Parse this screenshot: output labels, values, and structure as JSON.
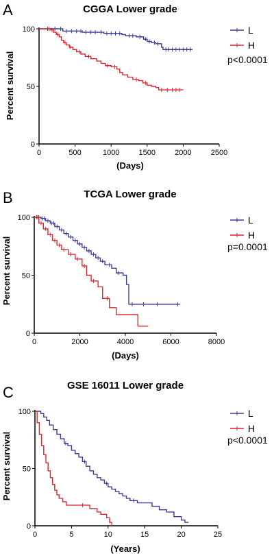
{
  "chart_data": [
    {
      "type": "line",
      "letter": "A",
      "title": "CGGA Lower grade",
      "xlabel": "(Days)",
      "ylabel": "Percent survival",
      "xlim": [
        0,
        2500
      ],
      "ylim": [
        0,
        100
      ],
      "xticks": [
        0,
        500,
        1000,
        1500,
        2000,
        2500
      ],
      "yticks": [
        0,
        50,
        100
      ],
      "pvalue": "p<0.0001",
      "series": [
        {
          "name": "L",
          "color": "#3b3b9a",
          "points": [
            [
              0,
              100
            ],
            [
              180,
              100
            ],
            [
              260,
              100
            ],
            [
              330,
              98
            ],
            [
              600,
              97
            ],
            [
              900,
              96
            ],
            [
              1150,
              95
            ],
            [
              1200,
              94
            ],
            [
              1350,
              93
            ],
            [
              1450,
              91
            ],
            [
              1500,
              89
            ],
            [
              1560,
              88
            ],
            [
              1620,
              87
            ],
            [
              1700,
              84
            ],
            [
              1720,
              82
            ],
            [
              2130,
              82
            ]
          ],
          "censors": [
            120,
            220,
            300,
            380,
            450,
            520,
            580,
            650,
            720,
            780,
            860,
            940,
            1000,
            1060,
            1120,
            1250,
            1300,
            1400,
            1480,
            1530,
            1600,
            1650,
            1760,
            1800,
            1850,
            1900,
            1950,
            2000,
            2050,
            2100
          ]
        },
        {
          "name": "H",
          "color": "#e0242c",
          "points": [
            [
              0,
              100
            ],
            [
              160,
              99
            ],
            [
              200,
              97
            ],
            [
              240,
              95
            ],
            [
              280,
              93
            ],
            [
              310,
              90
            ],
            [
              340,
              88
            ],
            [
              380,
              86
            ],
            [
              420,
              84
            ],
            [
              470,
              82
            ],
            [
              520,
              80
            ],
            [
              580,
              78
            ],
            [
              640,
              76
            ],
            [
              720,
              74
            ],
            [
              800,
              72
            ],
            [
              860,
              70
            ],
            [
              920,
              68
            ],
            [
              1000,
              67
            ],
            [
              1080,
              65
            ],
            [
              1120,
              62
            ],
            [
              1160,
              60
            ],
            [
              1230,
              58
            ],
            [
              1300,
              56
            ],
            [
              1380,
              55
            ],
            [
              1440,
              53
            ],
            [
              1500,
              51
            ],
            [
              1560,
              50
            ],
            [
              1620,
              49
            ],
            [
              1660,
              47
            ],
            [
              2000,
              47
            ]
          ],
          "censors": [
            140,
            180,
            260,
            360,
            430,
            560,
            690,
            950,
            1050,
            1350,
            1480,
            1700,
            1780,
            1850,
            1900,
            1950
          ]
        }
      ]
    },
    {
      "type": "line",
      "letter": "B",
      "title": "TCGA Lower grade",
      "xlabel": "(Days)",
      "ylabel": "Percent survival",
      "xlim": [
        0,
        8000
      ],
      "ylim": [
        0,
        100
      ],
      "xticks": [
        0,
        2000,
        4000,
        6000,
        8000
      ],
      "yticks": [
        0,
        50,
        100
      ],
      "pvalue": "p=0.0001",
      "series": [
        {
          "name": "L",
          "color": "#3b3b9a",
          "points": [
            [
              0,
              100
            ],
            [
              300,
              99
            ],
            [
              500,
              97
            ],
            [
              700,
              95
            ],
            [
              900,
              92
            ],
            [
              1100,
              89
            ],
            [
              1300,
              86
            ],
            [
              1500,
              83
            ],
            [
              1700,
              80
            ],
            [
              1900,
              77
            ],
            [
              2100,
              74
            ],
            [
              2300,
              71
            ],
            [
              2500,
              68
            ],
            [
              2700,
              65
            ],
            [
              2900,
              62
            ],
            [
              3100,
              59
            ],
            [
              3400,
              56
            ],
            [
              3600,
              52
            ],
            [
              3900,
              50
            ],
            [
              4050,
              42
            ],
            [
              4150,
              25
            ],
            [
              6400,
              25
            ]
          ],
          "censors": [
            100,
            200,
            350,
            450,
            600,
            750,
            850,
            1000,
            1200,
            1400,
            1600,
            1800,
            2000,
            2200,
            2400,
            2600,
            2800,
            3000,
            3300,
            3700,
            4300,
            4800,
            5400,
            6300
          ]
        },
        {
          "name": "H",
          "color": "#e0242c",
          "points": [
            [
              0,
              100
            ],
            [
              200,
              95
            ],
            [
              400,
              90
            ],
            [
              600,
              85
            ],
            [
              800,
              80
            ],
            [
              1000,
              76
            ],
            [
              1200,
              72
            ],
            [
              1500,
              68
            ],
            [
              1800,
              64
            ],
            [
              2100,
              58
            ],
            [
              2300,
              50
            ],
            [
              2500,
              45
            ],
            [
              2800,
              40
            ],
            [
              3000,
              30
            ],
            [
              3300,
              22
            ],
            [
              3600,
              16
            ],
            [
              4500,
              16
            ],
            [
              4550,
              6
            ],
            [
              5000,
              6
            ]
          ],
          "censors": [
            150,
            300,
            500,
            700,
            900,
            1100,
            1300,
            1600,
            1900,
            2200,
            2600,
            3200
          ]
        }
      ]
    },
    {
      "type": "line",
      "letter": "C",
      "title": "GSE 16011 Lower grade",
      "xlabel": "(Years)",
      "ylabel": "Percent survival",
      "xlim": [
        0,
        25
      ],
      "ylim": [
        0,
        100
      ],
      "xticks": [
        0,
        5,
        10,
        15,
        20,
        25
      ],
      "yticks": [
        0,
        50,
        100
      ],
      "pvalue": "p<0.0001",
      "series": [
        {
          "name": "L",
          "color": "#3b3b9a",
          "points": [
            [
              0,
              100
            ],
            [
              0.8,
              98
            ],
            [
              1.2,
              95
            ],
            [
              1.6,
              92
            ],
            [
              2,
              88
            ],
            [
              2.5,
              84
            ],
            [
              3,
              80
            ],
            [
              3.5,
              76
            ],
            [
              4,
              72
            ],
            [
              4.5,
              70
            ],
            [
              5,
              66
            ],
            [
              5.5,
              63
            ],
            [
              6,
              60
            ],
            [
              6.5,
              56
            ],
            [
              7,
              52
            ],
            [
              7.5,
              48
            ],
            [
              8,
              45
            ],
            [
              8.5,
              42
            ],
            [
              9,
              40
            ],
            [
              9.5,
              37
            ],
            [
              10,
              34
            ],
            [
              10.5,
              32
            ],
            [
              11,
              30
            ],
            [
              11.5,
              28
            ],
            [
              12,
              26
            ],
            [
              12.5,
              24
            ],
            [
              13,
              22
            ],
            [
              14,
              20
            ],
            [
              15,
              20
            ],
            [
              16,
              17
            ],
            [
              17,
              14
            ],
            [
              18,
              12
            ],
            [
              19,
              8
            ],
            [
              20,
              5
            ],
            [
              20.5,
              3
            ],
            [
              21,
              3
            ]
          ],
          "censors": [
            4.2,
            6.8,
            9.8,
            13.5
          ]
        },
        {
          "name": "H",
          "color": "#e0242c",
          "points": [
            [
              0,
              100
            ],
            [
              0.3,
              90
            ],
            [
              0.6,
              80
            ],
            [
              0.9,
              70
            ],
            [
              1.2,
              62
            ],
            [
              1.5,
              55
            ],
            [
              1.8,
              48
            ],
            [
              2.1,
              42
            ],
            [
              2.4,
              36
            ],
            [
              2.7,
              31
            ],
            [
              3,
              27
            ],
            [
              3.3,
              24
            ],
            [
              3.8,
              21
            ],
            [
              4.3,
              18
            ],
            [
              7,
              18
            ],
            [
              7.5,
              15
            ],
            [
              8.5,
              12
            ],
            [
              9,
              10
            ],
            [
              9.8,
              7
            ],
            [
              10.2,
              3
            ],
            [
              10.5,
              0
            ]
          ],
          "censors": [
            6.5
          ]
        }
      ]
    }
  ]
}
